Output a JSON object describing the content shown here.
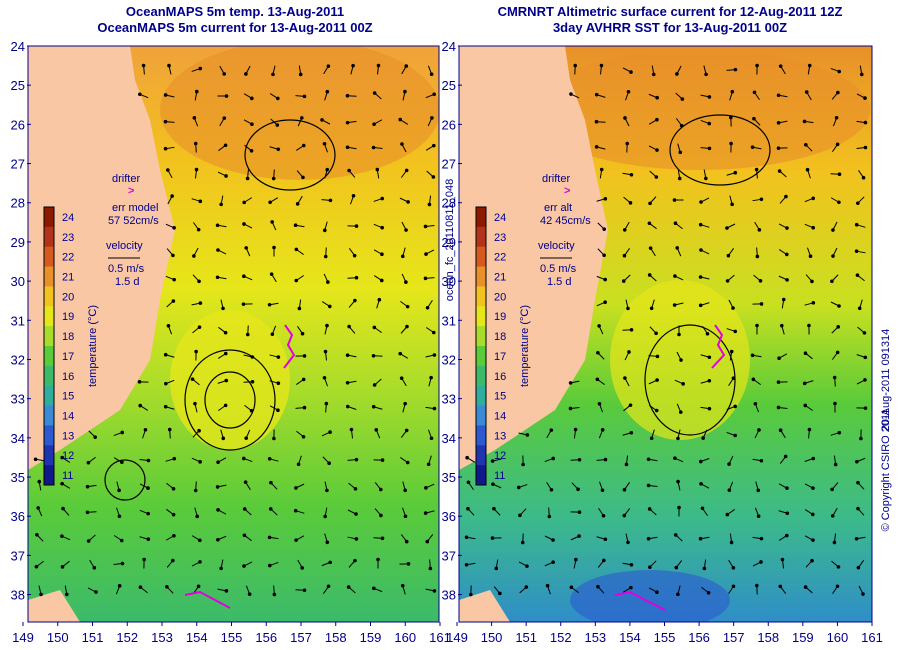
{
  "colors": {
    "land": "#f9c7a3",
    "frame": "#00008b",
    "contour": "#62d4d6",
    "arrow": "#000000",
    "drifter": "#e000e0",
    "background": "#ffffff"
  },
  "left_panel": {
    "title_line1": "OceanMAPS 5m temp. 13-Aug-2011",
    "title_line2": "OceanMAPS 5m current for 13-Aug-2011 00Z",
    "drifter_label": "drifter",
    "err_label": "err model",
    "err_value": "57 52cm/s",
    "velocity_label": "velocity",
    "velocity_scale": "0.5 m/s",
    "velocity_time": "1.5 d"
  },
  "right_panel": {
    "title_line1": "CMRNRT Altimetric surface current for 12-Aug-2011 12Z",
    "title_line2": "3day AVHRR SST for 13-Aug-2011 00Z",
    "drifter_label": "drifter",
    "err_label": "err alt",
    "err_value": "42 45cm/s",
    "velocity_label": "velocity",
    "velocity_scale": "0.5 m/s",
    "velocity_time": "1.5 d"
  },
  "colorbar": {
    "label": "temperature (°C)",
    "ticks": [
      "24",
      "23",
      "22",
      "21",
      "20",
      "19",
      "18",
      "17",
      "16",
      "15",
      "14",
      "13",
      "12",
      "11"
    ],
    "colors": [
      "#8b1a00",
      "#b3331a",
      "#d65a1e",
      "#e8902a",
      "#f2c21e",
      "#e6e61a",
      "#a8dc2a",
      "#5acb3a",
      "#3cba6a",
      "#2fae9e",
      "#3b8ad6",
      "#2b5ad0",
      "#1e34b0",
      "#10188a"
    ]
  },
  "axes": {
    "y_ticks": [
      "24",
      "25",
      "26",
      "27",
      "28",
      "29",
      "30",
      "31",
      "32",
      "33",
      "34",
      "35",
      "36",
      "37",
      "38"
    ],
    "x_ticks": [
      "149",
      "150",
      "151",
      "152",
      "153",
      "154",
      "155",
      "156",
      "157",
      "158",
      "159",
      "160",
      "161"
    ]
  },
  "middle_label": "ocean_fc_20110811_048",
  "right_edge_labels": {
    "copyright": "© Copyright CSIRO 2011",
    "timestamp": "20-Aug-2011 091314"
  }
}
